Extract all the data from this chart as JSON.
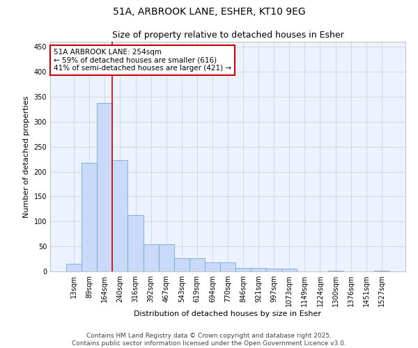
{
  "title_line1": "51A, ARBROOK LANE, ESHER, KT10 9EG",
  "title_line2": "Size of property relative to detached houses in Esher",
  "xlabel": "Distribution of detached houses by size in Esher",
  "ylabel": "Number of detached properties",
  "categories": [
    "13sqm",
    "89sqm",
    "164sqm",
    "240sqm",
    "316sqm",
    "392sqm",
    "467sqm",
    "543sqm",
    "619sqm",
    "694sqm",
    "770sqm",
    "846sqm",
    "921sqm",
    "997sqm",
    "1073sqm",
    "1149sqm",
    "1224sqm",
    "1300sqm",
    "1376sqm",
    "1451sqm",
    "1527sqm"
  ],
  "values": [
    15,
    217,
    338,
    223,
    113,
    55,
    55,
    26,
    26,
    18,
    18,
    7,
    7,
    5,
    5,
    0,
    0,
    1,
    0,
    0,
    1
  ],
  "bar_color": "#c9daf8",
  "bar_edge_color": "#6fa8dc",
  "vline_x_index": 2.5,
  "vline_color": "#cc0000",
  "annotation_text": "51A ARBROOK LANE: 254sqm\n← 59% of detached houses are smaller (616)\n41% of semi-detached houses are larger (421) →",
  "annotation_box_color": "#ffffff",
  "annotation_box_edge": "#cc0000",
  "ylim": [
    0,
    460
  ],
  "yticks": [
    0,
    50,
    100,
    150,
    200,
    250,
    300,
    350,
    400,
    450
  ],
  "grid_color": "#cccccc",
  "background_color": "#edf2ff",
  "footer_line1": "Contains HM Land Registry data © Crown copyright and database right 2025.",
  "footer_line2": "Contains public sector information licensed under the Open Government Licence v3.0.",
  "title_fontsize": 10,
  "subtitle_fontsize": 9,
  "axis_label_fontsize": 8,
  "tick_fontsize": 7,
  "annotation_fontsize": 7.5,
  "footer_fontsize": 6.5
}
